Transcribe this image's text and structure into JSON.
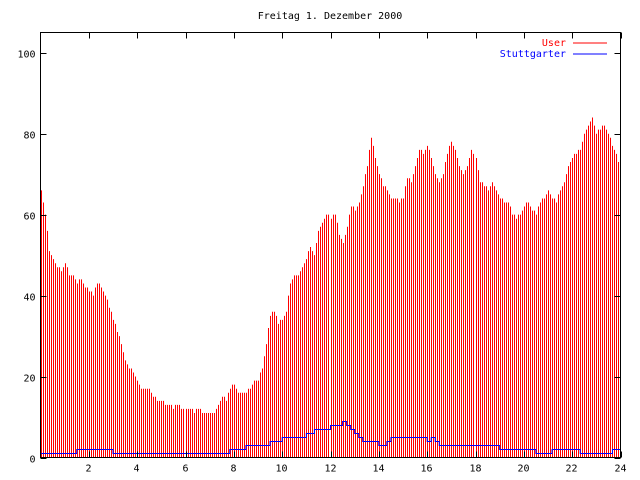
{
  "chart_data": {
    "type": "bar",
    "title": "Freitag 1. Dezember 2000",
    "xlabel": "",
    "ylabel": "",
    "xlim": [
      0,
      24
    ],
    "ylim": [
      0,
      105
    ],
    "x_step_hours": 0.16667,
    "xticks": [
      2,
      4,
      6,
      8,
      10,
      12,
      14,
      16,
      18,
      20,
      22,
      24
    ],
    "yticks": [
      0,
      20,
      40,
      60,
      80,
      100
    ],
    "legend_position": "top-right",
    "colors": {
      "User": "#ff0000",
      "Stuttgarter": "#0000ff",
      "axis": "#000000"
    },
    "series": [
      {
        "name": "User",
        "style": "impulses",
        "values": [
          66,
          60,
          51,
          49,
          47,
          46,
          48,
          45,
          45,
          43,
          44,
          42,
          41,
          40,
          43,
          42,
          40,
          37,
          34,
          31,
          28,
          24,
          22,
          21,
          19,
          17,
          17,
          17,
          15,
          14,
          14,
          13,
          13,
          12,
          13,
          12,
          12,
          12,
          11,
          12,
          11,
          11,
          11,
          11,
          13,
          15,
          14,
          17,
          18,
          16,
          16,
          16,
          17,
          19,
          19,
          22,
          28,
          35,
          36,
          33,
          34,
          36,
          43,
          45,
          45,
          47,
          49,
          52,
          50,
          56,
          58,
          60,
          59,
          60,
          55,
          53,
          57,
          62,
          61,
          63,
          67,
          72,
          79,
          74,
          70,
          67,
          66,
          64,
          64,
          63,
          64,
          69,
          68,
          72,
          76,
          75,
          77,
          74,
          70,
          68,
          70,
          75,
          78,
          76,
          72,
          70,
          72,
          76,
          74,
          68,
          67,
          66,
          68,
          66,
          64,
          63,
          63,
          60,
          59,
          60,
          62,
          63,
          61,
          60,
          63,
          64,
          66,
          64,
          63,
          66,
          68,
          72,
          74,
          75,
          76,
          80,
          82,
          84,
          80,
          81,
          82,
          80,
          77,
          75,
          70
        ]
      },
      {
        "name": "Stuttgarter",
        "style": "steps",
        "values": [
          1,
          1,
          1,
          1,
          1,
          1,
          1,
          1,
          1,
          2,
          2,
          2,
          2,
          2,
          2,
          2,
          2,
          2,
          1,
          1,
          1,
          1,
          1,
          1,
          1,
          1,
          1,
          1,
          1,
          1,
          1,
          1,
          1,
          1,
          1,
          1,
          1,
          1,
          1,
          1,
          1,
          1,
          1,
          1,
          1,
          1,
          1,
          2,
          2,
          2,
          2,
          3,
          3,
          3,
          3,
          3,
          3,
          4,
          4,
          4,
          5,
          5,
          5,
          5,
          5,
          5,
          6,
          6,
          7,
          7,
          7,
          7,
          8,
          8,
          8,
          9,
          8,
          7,
          6,
          5,
          4,
          4,
          4,
          4,
          3,
          3,
          4,
          5,
          5,
          5,
          5,
          5,
          5,
          5,
          5,
          5,
          4,
          5,
          4,
          3,
          3,
          3,
          3,
          3,
          3,
          3,
          3,
          3,
          3,
          3,
          3,
          3,
          3,
          3,
          2,
          2,
          2,
          2,
          2,
          2,
          2,
          2,
          2,
          1,
          1,
          1,
          1,
          2,
          2,
          2,
          2,
          2,
          2,
          2,
          1,
          1,
          1,
          1,
          1,
          1,
          1,
          1,
          2,
          2,
          2
        ]
      }
    ]
  }
}
